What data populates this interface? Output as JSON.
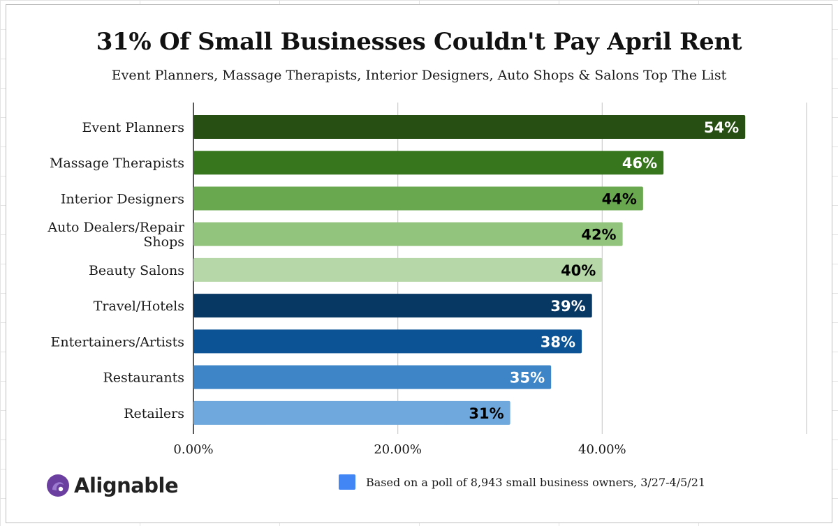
{
  "chart_data": {
    "type": "bar",
    "orientation": "horizontal",
    "title": "31% Of Small Businesses Couldn't Pay April Rent",
    "subtitle": "Event Planners, Massage Therapists, Interior Designers, Auto Shops & Salons Top The List",
    "categories": [
      "Event Planners",
      "Massage Therapists",
      "Interior Designers",
      "Auto Dealers/Repair Shops",
      "Beauty Salons",
      "Travel/Hotels",
      "Entertainers/Artists",
      "Restaurants",
      "Retailers"
    ],
    "category_lines": [
      [
        "Event Planners"
      ],
      [
        "Massage Therapists"
      ],
      [
        "Interior Designers"
      ],
      [
        "Auto Dealers/Repair",
        "Shops"
      ],
      [
        "Beauty Salons"
      ],
      [
        "Travel/Hotels"
      ],
      [
        "Entertainers/Artists"
      ],
      [
        "Restaurants"
      ],
      [
        "Retailers"
      ]
    ],
    "values": [
      54,
      46,
      44,
      42,
      40,
      39,
      38,
      35,
      31
    ],
    "data_labels": [
      "54%",
      "46%",
      "44%",
      "42%",
      "40%",
      "39%",
      "38%",
      "35%",
      "31%"
    ],
    "bar_colors": [
      "#274e13",
      "#38761d",
      "#6aa84f",
      "#93c47d",
      "#b6d7a8",
      "#073763",
      "#0b5394",
      "#3d85c6",
      "#6fa8dc"
    ],
    "label_colors": [
      "#ffffff",
      "#ffffff",
      "#000000",
      "#000000",
      "#000000",
      "#ffffff",
      "#ffffff",
      "#ffffff",
      "#000000"
    ],
    "xlim": [
      0,
      60
    ],
    "xticks": [
      0,
      20,
      40
    ],
    "xtick_labels": [
      "0.00%",
      "20.00%",
      "40.00%"
    ],
    "grid": true,
    "xlabel": "",
    "ylabel": ""
  },
  "legend": {
    "text": "Based on a poll of 8,943 small business owners, 3/27-4/5/21",
    "color": "#4285f4"
  },
  "brand": {
    "name": "Alignable",
    "logo_color": "#6b3fa0",
    "logo_accent": "#9b7ad0"
  }
}
